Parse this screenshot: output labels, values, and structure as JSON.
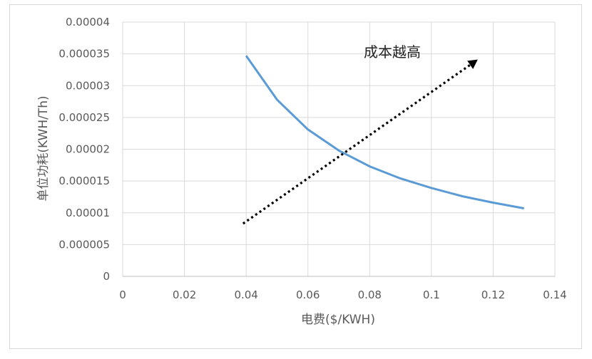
{
  "chart_data": {
    "type": "line",
    "title": "",
    "xlabel": "电费($/KWH)",
    "ylabel": "单位功耗(KWH/Th)",
    "xlim": [
      0,
      0.14
    ],
    "ylim": [
      0,
      4e-05
    ],
    "x_ticks": [
      "0",
      "0.02",
      "0.04",
      "0.06",
      "0.08",
      "0.1",
      "0.12",
      "0.14"
    ],
    "y_ticks": [
      "0",
      "0.000005",
      "0.00001",
      "0.000015",
      "0.00002",
      "0.000025",
      "0.00003",
      "0.000035",
      "0.00004"
    ],
    "grid": true,
    "legend": null,
    "series": [
      {
        "name": "单位功耗",
        "color": "#5b9bd5",
        "x": [
          0.04,
          0.05,
          0.06,
          0.07,
          0.08,
          0.09,
          0.1,
          0.11,
          0.12,
          0.13
        ],
        "values": [
          3.47e-05,
          2.78e-05,
          2.31e-05,
          1.98e-05,
          1.73e-05,
          1.54e-05,
          1.39e-05,
          1.26e-05,
          1.16e-05,
          1.07e-05
        ]
      }
    ],
    "annotations": [
      {
        "type": "dotted-arrow",
        "color": "#000000",
        "from": {
          "x": 0.039,
          "y": 8.3e-06
        },
        "to": {
          "x": 0.115,
          "y": 3.41e-05
        },
        "label": "成本越高"
      }
    ]
  }
}
